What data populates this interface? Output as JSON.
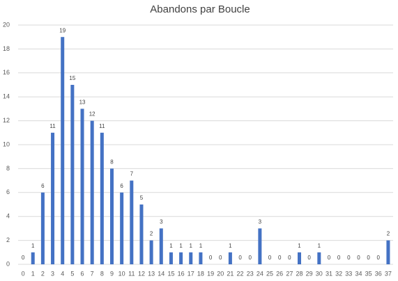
{
  "chart_data": {
    "type": "bar",
    "title": "Abandons par Boucle",
    "categories": [
      "0",
      "1",
      "2",
      "3",
      "4",
      "5",
      "6",
      "7",
      "8",
      "9",
      "10",
      "11",
      "12",
      "13",
      "14",
      "15",
      "16",
      "17",
      "18",
      "19",
      "20",
      "21",
      "22",
      "23",
      "24",
      "25",
      "26",
      "27",
      "28",
      "29",
      "30",
      "31",
      "32",
      "33",
      "34",
      "35",
      "36",
      "37"
    ],
    "values": [
      0,
      1,
      6,
      11,
      19,
      15,
      13,
      12,
      11,
      8,
      6,
      7,
      5,
      2,
      3,
      1,
      1,
      1,
      1,
      0,
      0,
      1,
      0,
      0,
      3,
      0,
      0,
      0,
      1,
      0,
      1,
      0,
      0,
      0,
      0,
      0,
      0,
      2
    ],
    "color": "#4472c4",
    "ylim": [
      0,
      20
    ],
    "yticks": [
      0,
      2,
      4,
      6,
      8,
      10,
      12,
      14,
      16,
      18,
      20
    ],
    "grid": true
  }
}
